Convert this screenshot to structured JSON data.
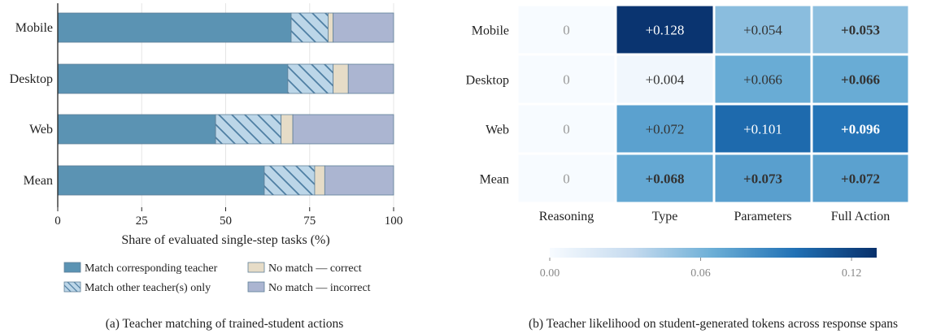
{
  "panel_a": {
    "caption": "(a) Teacher matching of trained-student actions",
    "legend": [
      {
        "label": "Match corresponding teacher",
        "color": "#5b93b3",
        "hatch": false
      },
      {
        "label": "Match other teacher(s) only",
        "color": "#bcd6e8",
        "hatch": true
      },
      {
        "label": "No match — correct",
        "color": "#e6dcc7",
        "hatch": false
      },
      {
        "label": "No match — incorrect",
        "color": "#abb5d1",
        "hatch": false
      }
    ]
  },
  "panel_b": {
    "caption": "(b) Teacher likelihood on student-generated tokens across response spans",
    "colorbar_ticks": [
      "0.00",
      "0.06",
      "0.12"
    ]
  },
  "chart_data": [
    {
      "type": "bar",
      "orientation": "horizontal",
      "stacked": true,
      "categories": [
        "Mobile",
        "Desktop",
        "Web",
        "Mean"
      ],
      "series": [
        {
          "name": "Match corresponding teacher",
          "values": [
            69.5,
            68.5,
            47.0,
            61.5
          ]
        },
        {
          "name": "Match other teacher(s) only",
          "values": [
            11.0,
            13.5,
            19.5,
            15.0
          ]
        },
        {
          "name": "No match — correct",
          "values": [
            1.5,
            4.5,
            3.5,
            3.0
          ]
        },
        {
          "name": "No match — incorrect",
          "values": [
            18.0,
            13.5,
            30.0,
            20.5
          ]
        }
      ],
      "xlabel": "Share of evaluated single-step tasks (%)",
      "ylabel": "",
      "xlim": [
        0,
        100
      ],
      "xticks": [
        "0",
        "25",
        "50",
        "75",
        "100"
      ],
      "grid": "vertical",
      "legend_position": "bottom"
    },
    {
      "type": "heatmap",
      "rows": [
        "Mobile",
        "Desktop",
        "Web",
        "Mean"
      ],
      "columns": [
        "Reasoning",
        "Type",
        "Parameters",
        "Full Action"
      ],
      "values": [
        [
          0,
          0.128,
          0.054,
          0.053
        ],
        [
          0,
          0.004,
          0.066,
          0.066
        ],
        [
          0,
          0.072,
          0.101,
          0.096
        ],
        [
          0,
          0.068,
          0.073,
          0.072
        ]
      ],
      "labels": [
        [
          "0",
          "+0.128",
          "+0.054",
          "+0.053"
        ],
        [
          "0",
          "+0.004",
          "+0.066",
          "+0.066"
        ],
        [
          "0",
          "+0.072",
          "+0.101",
          "+0.096"
        ],
        [
          "0",
          "+0.068",
          "+0.073",
          "+0.072"
        ]
      ],
      "bold": [
        [
          false,
          false,
          false,
          true
        ],
        [
          false,
          false,
          false,
          true
        ],
        [
          false,
          false,
          false,
          true
        ],
        [
          false,
          true,
          true,
          true
        ]
      ],
      "colorbar": {
        "min": 0,
        "max": 0.13,
        "ticks": [
          0,
          0.06,
          0.12
        ],
        "position": "bottom"
      }
    }
  ]
}
